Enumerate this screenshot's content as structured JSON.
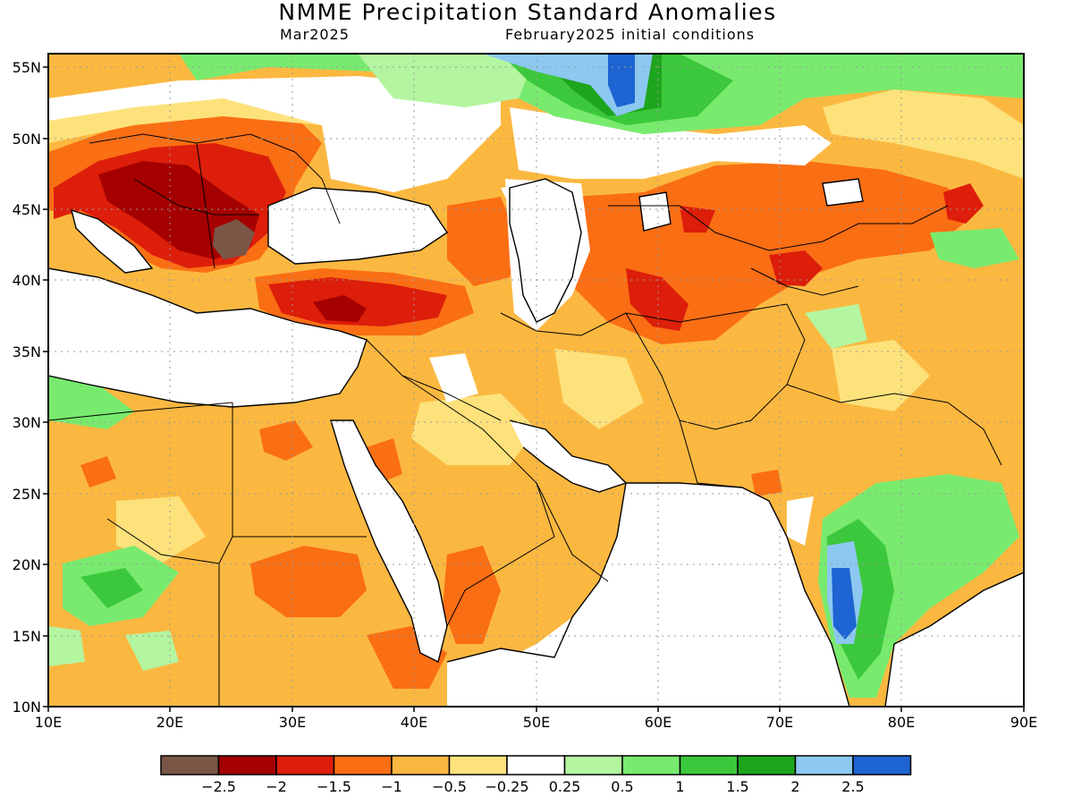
{
  "title": "NMME Precipitation Standard Anomalies",
  "subtitle_left": "Mar2025",
  "subtitle_right": "February2025 initial conditions",
  "lat_labels": [
    "55N",
    "50N",
    "45N",
    "40N",
    "35N",
    "30N",
    "25N",
    "20N",
    "15N",
    "10N"
  ],
  "lon_labels": [
    "10E",
    "20E",
    "30E",
    "40E",
    "50E",
    "60E",
    "70E",
    "80E",
    "90E"
  ],
  "colorbar": {
    "colors": [
      "#7a5646",
      "#a50000",
      "#dc1e0a",
      "#fa6e14",
      "#fbb840",
      "#fde27c",
      "#ffffff",
      "#b4f5a0",
      "#78ea6e",
      "#3cc83c",
      "#1ea51e",
      "#8cc8f0",
      "#1e64d2"
    ],
    "labels": [
      "-2.5",
      "-2",
      "-1.5",
      "-1",
      "-0.5",
      "-0.25",
      "0.25",
      "0.5",
      "1",
      "1.5",
      "2",
      "2.5"
    ]
  }
}
